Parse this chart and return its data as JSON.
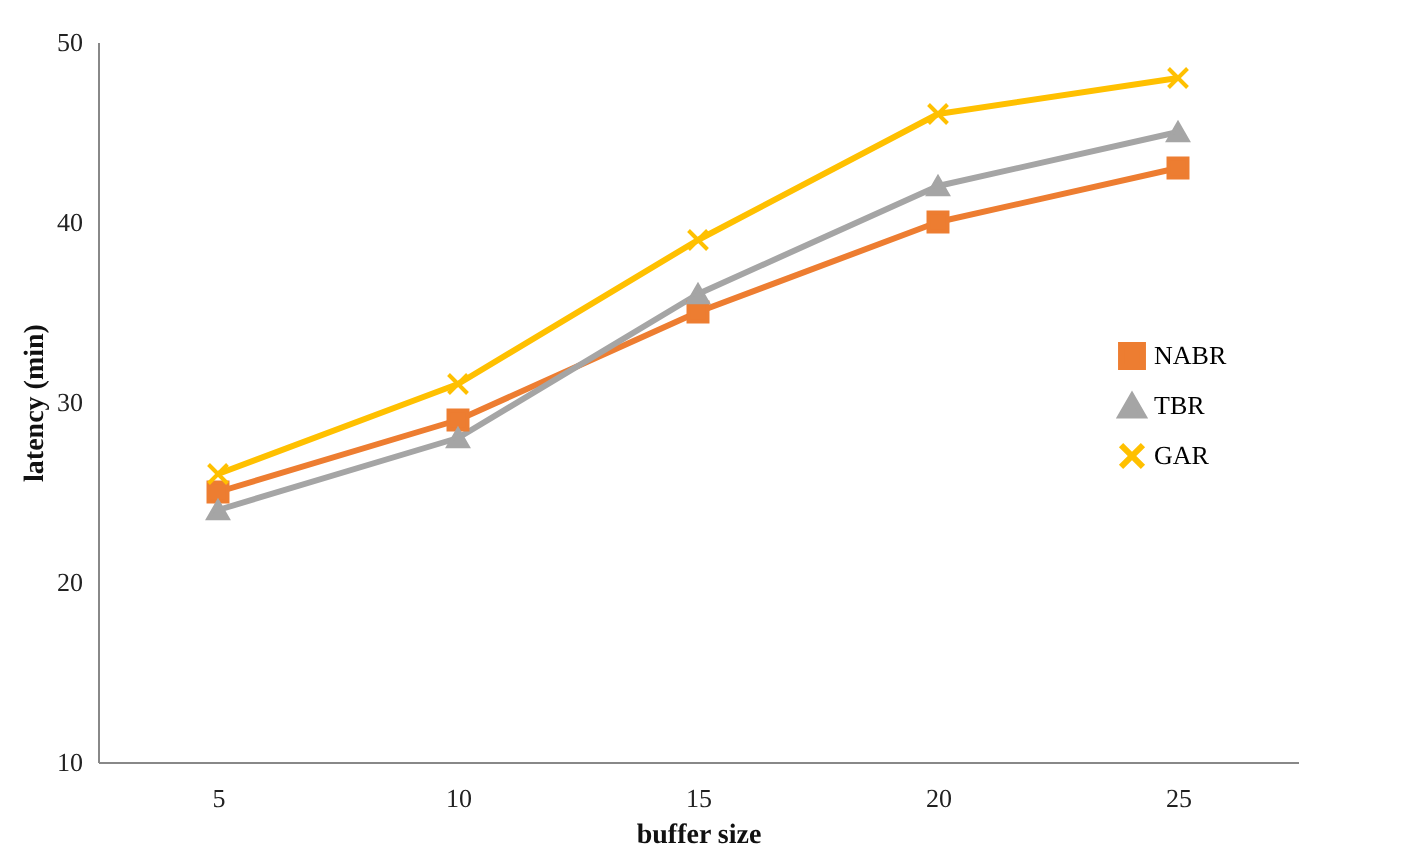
{
  "chart_data": {
    "type": "line",
    "xlabel": "buffer size",
    "ylabel": "latency (min)",
    "categories": [
      "5",
      "10",
      "15",
      "20",
      "25"
    ],
    "series": [
      {
        "name": "NABR",
        "color": "#ed7d31",
        "marker": "square",
        "values": [
          25,
          29,
          35,
          40,
          43
        ]
      },
      {
        "name": "TBR",
        "color": "#a5a5a5",
        "marker": "triangle",
        "values": [
          24,
          28,
          36,
          42,
          45
        ]
      },
      {
        "name": "GAR",
        "color": "#ffc000",
        "marker": "cross",
        "values": [
          26,
          31,
          39,
          46,
          48
        ]
      }
    ],
    "ylim": [
      10,
      50
    ],
    "yticks": [
      10,
      20,
      30,
      40,
      50
    ],
    "grid": false,
    "legend": "right"
  }
}
